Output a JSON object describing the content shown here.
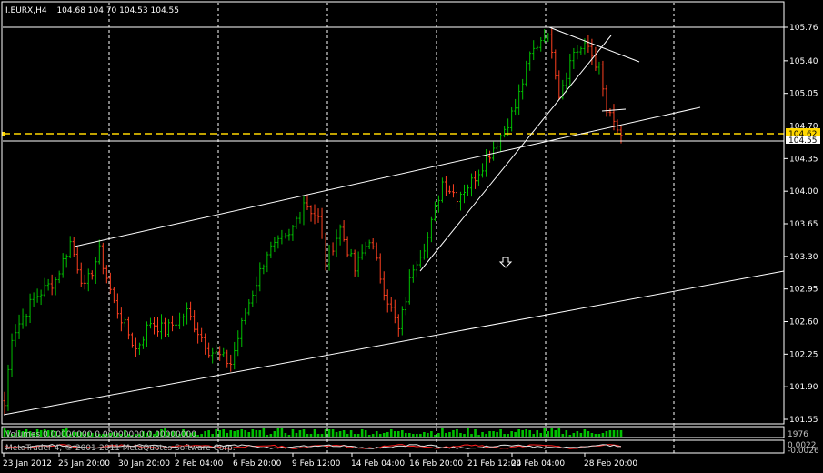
{
  "header": {
    "symbol": "I.EURX,H4",
    "ohlc": "104.68 104.70 104.53 104.55"
  },
  "colors": {
    "background": "#000000",
    "frame": "#ffffff",
    "grid": "#ffffff",
    "bull": "#00c000",
    "bear": "#ff4020",
    "volume": "#00c000",
    "current_price": "#ffd700",
    "trendline": "#ffffff"
  },
  "price_axis": {
    "min": 101.55,
    "max": 105.76,
    "ticks": [
      "105.76",
      "105.40",
      "105.05",
      "104.70",
      "104.35",
      "104.00",
      "103.65",
      "103.30",
      "102.95",
      "102.60",
      "102.25",
      "101.90",
      "101.55"
    ],
    "current_price": "104.62",
    "last_close": "104.55"
  },
  "time_axis": {
    "labels": [
      "23 Jan 2012",
      "25 Jan 20:00",
      "30 Jan 20:00",
      "2 Feb 04:00",
      "6 Feb 20:00",
      "9 Feb 12:00",
      "14 Feb 04:00",
      "16 Feb 20:00",
      "21 Feb 12:00",
      "24 Feb 04:00",
      "28 Feb 20:00"
    ]
  },
  "volume_panel": {
    "label": "Volumes 0.00000000 0.00000000 0.00000000",
    "scale": "1976"
  },
  "indicator_panel": {
    "label": "MetaTrader 4, © 2001-2011 MetaQuotes Software Corp.",
    "scale_top": "0.0022",
    "scale_bottom": "-0.0026"
  },
  "chart_data": {
    "type": "candlestick",
    "timeframe": "H4",
    "ylim": [
      101.55,
      105.76
    ],
    "anchors": [
      {
        "i": 0,
        "p": 101.7
      },
      {
        "i": 2,
        "p": 102.45
      },
      {
        "i": 8,
        "p": 102.85
      },
      {
        "i": 14,
        "p": 103.05
      },
      {
        "i": 18,
        "p": 103.45
      },
      {
        "i": 22,
        "p": 102.95
      },
      {
        "i": 26,
        "p": 103.35
      },
      {
        "i": 30,
        "p": 102.8
      },
      {
        "i": 36,
        "p": 102.3
      },
      {
        "i": 40,
        "p": 102.6
      },
      {
        "i": 44,
        "p": 102.5
      },
      {
        "i": 50,
        "p": 102.7
      },
      {
        "i": 56,
        "p": 102.3
      },
      {
        "i": 62,
        "p": 102.15
      },
      {
        "i": 66,
        "p": 102.7
      },
      {
        "i": 72,
        "p": 103.35
      },
      {
        "i": 78,
        "p": 103.5
      },
      {
        "i": 82,
        "p": 103.9
      },
      {
        "i": 86,
        "p": 103.7
      },
      {
        "i": 88,
        "p": 103.25
      },
      {
        "i": 92,
        "p": 103.6
      },
      {
        "i": 96,
        "p": 103.15
      },
      {
        "i": 100,
        "p": 103.5
      },
      {
        "i": 104,
        "p": 102.95
      },
      {
        "i": 108,
        "p": 102.5
      },
      {
        "i": 112,
        "p": 103.2
      },
      {
        "i": 116,
        "p": 103.5
      },
      {
        "i": 120,
        "p": 104.1
      },
      {
        "i": 124,
        "p": 103.95
      },
      {
        "i": 128,
        "p": 104.1
      },
      {
        "i": 132,
        "p": 104.35
      },
      {
        "i": 136,
        "p": 104.6
      },
      {
        "i": 140,
        "p": 104.9
      },
      {
        "i": 144,
        "p": 105.45
      },
      {
        "i": 148,
        "p": 105.7
      },
      {
        "i": 150,
        "p": 105.55
      },
      {
        "i": 152,
        "p": 105.05
      },
      {
        "i": 156,
        "p": 105.5
      },
      {
        "i": 160,
        "p": 105.55
      },
      {
        "i": 163,
        "p": 105.3
      },
      {
        "i": 165,
        "p": 104.85
      },
      {
        "i": 169,
        "p": 104.6
      }
    ]
  }
}
